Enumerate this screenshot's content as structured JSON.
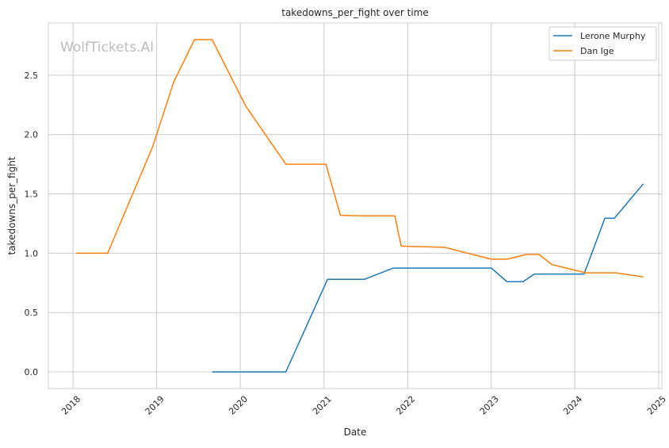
{
  "chart_data": {
    "type": "line",
    "title": "takedowns_per_fight over time",
    "xlabel": "Date",
    "ylabel": "takedowns_per_fight",
    "watermark": "WolfTickets.AI",
    "xlim": [
      "2017-09-15",
      "2025-01-15"
    ],
    "ylim": [
      -0.14,
      2.94
    ],
    "x_ticks": [
      "2018-01-01",
      "2019-01-01",
      "2020-01-01",
      "2021-01-01",
      "2022-01-01",
      "2023-01-01",
      "2024-01-01",
      "2025-01-01"
    ],
    "x_tick_labels": [
      "2018",
      "2019",
      "2020",
      "2021",
      "2022",
      "2023",
      "2024",
      "2025"
    ],
    "y_ticks": [
      0.0,
      0.5,
      1.0,
      1.5,
      2.0,
      2.5
    ],
    "y_tick_labels": [
      "0.0",
      "0.5",
      "1.0",
      "1.5",
      "2.0",
      "2.5"
    ],
    "grid": true,
    "legend_position": "top-right",
    "series": [
      {
        "name": "Lerone Murphy",
        "color": "#1f77b4",
        "points": [
          [
            "2019-08-31",
            0.0
          ],
          [
            "2020-07-18",
            0.0
          ],
          [
            "2021-01-16",
            0.78
          ],
          [
            "2021-06-26",
            0.78
          ],
          [
            "2021-10-30",
            0.875
          ],
          [
            "2023-01-01",
            0.875
          ],
          [
            "2023-03-11",
            0.76
          ],
          [
            "2023-05-20",
            0.76
          ],
          [
            "2023-07-08",
            0.825
          ],
          [
            "2024-02-10",
            0.825
          ],
          [
            "2024-05-11",
            1.295
          ],
          [
            "2024-06-22",
            1.295
          ],
          [
            "2024-10-26",
            1.585
          ]
        ]
      },
      {
        "name": "Dan Ige",
        "color": "#ff7f0e",
        "points": [
          [
            "2018-01-14",
            1.0
          ],
          [
            "2018-06-01",
            1.0
          ],
          [
            "2018-12-15",
            1.9
          ],
          [
            "2019-03-16",
            2.44
          ],
          [
            "2019-06-15",
            2.8
          ],
          [
            "2019-08-31",
            2.8
          ],
          [
            "2020-01-25",
            2.24
          ],
          [
            "2020-07-18",
            1.75
          ],
          [
            "2021-01-09",
            1.75
          ],
          [
            "2021-03-13",
            1.32
          ],
          [
            "2021-06-19",
            1.315
          ],
          [
            "2021-11-06",
            1.315
          ],
          [
            "2021-12-04",
            1.06
          ],
          [
            "2022-06-11",
            1.05
          ],
          [
            "2023-01-01",
            0.95
          ],
          [
            "2023-03-11",
            0.95
          ],
          [
            "2023-06-03",
            0.99
          ],
          [
            "2023-07-29",
            0.99
          ],
          [
            "2023-09-23",
            0.905
          ],
          [
            "2024-02-17",
            0.835
          ],
          [
            "2024-06-29",
            0.835
          ],
          [
            "2024-10-26",
            0.8
          ]
        ]
      }
    ]
  }
}
